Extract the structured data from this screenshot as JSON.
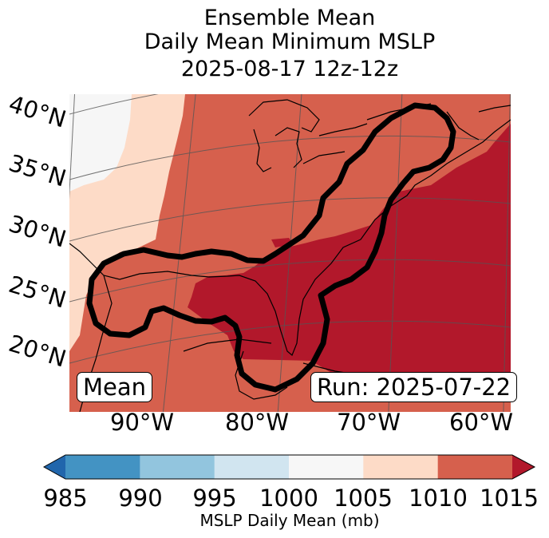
{
  "title": {
    "line1": "Ensemble Mean",
    "line2": "Daily Mean Minimum MSLP",
    "line3": "2025-08-17 12z-12z"
  },
  "map": {
    "lat_labels": [
      "40°N",
      "35°N",
      "30°N",
      "25°N",
      "20°N"
    ],
    "lon_labels": [
      "90°W",
      "80°W",
      "70°W",
      "60°W"
    ],
    "mean_box": "Mean",
    "run_box": "Run: 2025-07-22",
    "colors": {
      "lt1000": "#f6f6f6",
      "c1005": "#fddbc7",
      "c1010": "#d6604d",
      "c1015": "#b2182b",
      "contour": "#000000"
    }
  },
  "colorbar": {
    "ticks": [
      "985",
      "990",
      "995",
      "1000",
      "1005",
      "1010",
      "1015"
    ],
    "label": "MSLP Daily Mean (mb)",
    "bins": [
      {
        "name": "below-985",
        "color": "#2166ac"
      },
      {
        "name": "985-990",
        "color": "#4393c3"
      },
      {
        "name": "990-995",
        "color": "#92c5de"
      },
      {
        "name": "995-1000",
        "color": "#d1e5f0"
      },
      {
        "name": "1000-1005",
        "color": "#f7f7f7"
      },
      {
        "name": "1005-1010",
        "color": "#fddbc7"
      },
      {
        "name": "1010-1015",
        "color": "#d6604d"
      },
      {
        "name": "above-1015",
        "color": "#b2182b"
      }
    ]
  }
}
